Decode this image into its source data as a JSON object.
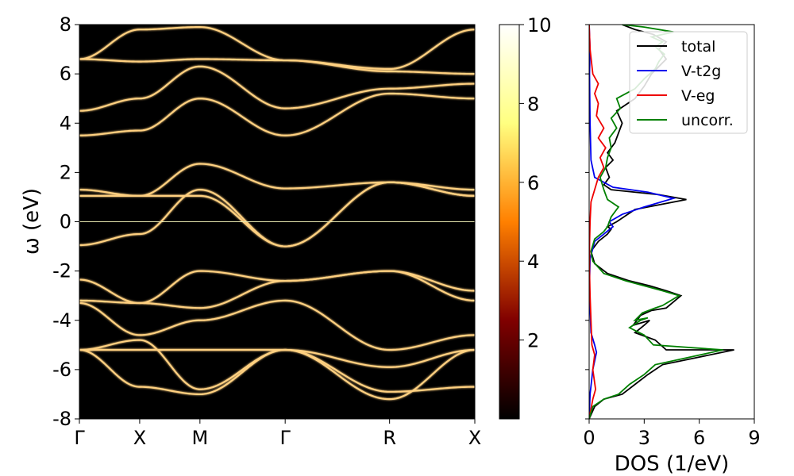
{
  "chart_data": [
    {
      "type": "heatmap",
      "ylabel": "ω (eV)",
      "ylim": [
        -8,
        8
      ],
      "yticks": [
        "-8",
        "-6",
        "-4",
        "-2",
        "0",
        "2",
        "4",
        "6",
        "8"
      ],
      "yticks_values": [
        -8,
        -6,
        -4,
        -2,
        0,
        2,
        4,
        6,
        8
      ],
      "k_path_labels": [
        "Γ",
        "X",
        "M",
        "Γ",
        "R",
        "X"
      ],
      "k_path_positions": [
        0,
        0.5,
        1.0,
        1.707,
        2.573,
        3.28
      ],
      "fermi_level": 0,
      "background_color": "#000000",
      "band_color": "#ffd080",
      "bands": [
        {
          "k": [
            0,
            0.5,
            1.0,
            1.707,
            2.573,
            3.28
          ],
          "e": [
            -0.95,
            -0.5,
            1.3,
            -1.0,
            1.6,
            1.05
          ]
        },
        {
          "k": [
            0,
            0.5,
            1.0,
            1.707,
            2.573,
            3.28
          ],
          "e": [
            1.05,
            1.05,
            1.05,
            -1.0,
            1.6,
            1.05
          ]
        },
        {
          "k": [
            0,
            0.5,
            1.0,
            1.707,
            2.573,
            3.28
          ],
          "e": [
            1.3,
            1.05,
            2.35,
            1.35,
            1.6,
            1.3
          ]
        },
        {
          "k": [
            0,
            0.5,
            1.0,
            1.707,
            2.573,
            3.28
          ],
          "e": [
            3.5,
            3.7,
            5.0,
            3.5,
            5.2,
            5.0
          ]
        },
        {
          "k": [
            0,
            0.5,
            1.0,
            1.707,
            2.573,
            3.28
          ],
          "e": [
            4.5,
            5.0,
            6.3,
            4.6,
            5.4,
            5.6
          ]
        },
        {
          "k": [
            0,
            0.5,
            1.0,
            1.707,
            2.573,
            3.28
          ],
          "e": [
            6.6,
            6.5,
            6.6,
            6.55,
            6.1,
            6.0
          ]
        },
        {
          "k": [
            0,
            0.5,
            1.0,
            1.707,
            2.573,
            3.28
          ],
          "e": [
            6.6,
            7.8,
            7.9,
            6.55,
            6.2,
            7.8
          ]
        },
        {
          "k": [
            0,
            0.5,
            1.0,
            1.707,
            2.573,
            3.28
          ],
          "e": [
            -2.35,
            -3.3,
            -2.0,
            -2.4,
            -2.0,
            -2.8
          ]
        },
        {
          "k": [
            0,
            0.5,
            1.0,
            1.707,
            2.573,
            3.28
          ],
          "e": [
            -3.2,
            -3.3,
            -3.5,
            -2.4,
            -2.0,
            -3.2
          ]
        },
        {
          "k": [
            0,
            0.5,
            1.0,
            1.707,
            2.573,
            3.28
          ],
          "e": [
            -3.3,
            -4.6,
            -4.0,
            -3.2,
            -5.2,
            -4.6
          ]
        },
        {
          "k": [
            0,
            0.5,
            1.0,
            1.707,
            2.573,
            3.28
          ],
          "e": [
            -5.2,
            -4.8,
            -6.8,
            -5.2,
            -5.9,
            -5.2
          ]
        },
        {
          "k": [
            0,
            0.5,
            1.0,
            1.707,
            2.573,
            3.28
          ],
          "e": [
            -5.2,
            -6.7,
            -7.0,
            -5.2,
            -6.9,
            -6.7
          ]
        },
        {
          "k": [
            0,
            0.5,
            1.0,
            1.707,
            2.573,
            3.28
          ],
          "e": [
            -5.2,
            -5.2,
            -5.2,
            -5.2,
            -7.2,
            -5.2
          ]
        }
      ]
    },
    {
      "type": "colorbar",
      "colormap": "afmhot",
      "range": [
        0,
        10
      ],
      "ticks": [
        "2",
        "4",
        "6",
        "8",
        "10"
      ],
      "ticks_values": [
        2,
        4,
        6,
        8,
        10
      ]
    },
    {
      "type": "line",
      "orientation": "horizontal-dos",
      "xlabel": "DOS (1/eV)",
      "xlim": [
        0,
        9
      ],
      "xticks": [
        "0",
        "3",
        "6",
        "9"
      ],
      "xticks_values": [
        0,
        3,
        6,
        9
      ],
      "ylim": [
        -8,
        8
      ],
      "legend_position": "upper-right",
      "series": [
        {
          "name": "total",
          "color": "#000000",
          "points": [
            [
              0,
              -8
            ],
            [
              0.3,
              -7.5
            ],
            [
              0.8,
              -7.2
            ],
            [
              1.8,
              -7.0
            ],
            [
              2.5,
              -6.6
            ],
            [
              3.2,
              -6.2
            ],
            [
              4.0,
              -5.8
            ],
            [
              7.9,
              -5.2
            ],
            [
              4.2,
              -5.2
            ],
            [
              3.6,
              -4.8
            ],
            [
              2.5,
              -4.5
            ],
            [
              3.0,
              -4.2
            ],
            [
              3.3,
              -4.0
            ],
            [
              2.4,
              -4.2
            ],
            [
              2.8,
              -3.8
            ],
            [
              3.4,
              -3.6
            ],
            [
              4.2,
              -3.5
            ],
            [
              5.0,
              -3.0
            ],
            [
              4.2,
              -2.8
            ],
            [
              3.3,
              -2.6
            ],
            [
              2.2,
              -2.4
            ],
            [
              1.0,
              -2.1
            ],
            [
              0.3,
              -1.7
            ],
            [
              0.1,
              -1.2
            ],
            [
              0.5,
              -0.8
            ],
            [
              1.0,
              -0.5
            ],
            [
              1.2,
              -0.3
            ],
            [
              1.0,
              -0.2
            ],
            [
              1.5,
              0.0
            ],
            [
              2.5,
              0.5
            ],
            [
              5.3,
              0.9
            ],
            [
              3.8,
              1.1
            ],
            [
              1.2,
              1.3
            ],
            [
              0.8,
              1.5
            ],
            [
              1.1,
              1.8
            ],
            [
              0.9,
              2.2
            ],
            [
              1.3,
              2.5
            ],
            [
              1.0,
              2.8
            ],
            [
              1.4,
              3.2
            ],
            [
              1.6,
              3.6
            ],
            [
              1.8,
              4.0
            ],
            [
              1.5,
              4.5
            ],
            [
              2.5,
              5.0
            ],
            [
              3.0,
              5.5
            ],
            [
              3.4,
              6.0
            ],
            [
              3.8,
              6.3
            ],
            [
              4.2,
              6.6
            ],
            [
              3.8,
              7.0
            ],
            [
              4.2,
              7.3
            ],
            [
              3.5,
              7.6
            ],
            [
              2.5,
              7.8
            ],
            [
              1.8,
              8.0
            ]
          ]
        },
        {
          "name": "V-t2g",
          "color": "#0000ee",
          "points": [
            [
              0,
              -8
            ],
            [
              0.05,
              -7.0
            ],
            [
              0.2,
              -6.0
            ],
            [
              0.4,
              -5.3
            ],
            [
              0.3,
              -5.0
            ],
            [
              0.1,
              -4.5
            ],
            [
              0.05,
              -3.5
            ],
            [
              0.02,
              -2.5
            ],
            [
              0.05,
              -1.5
            ],
            [
              0.3,
              -0.8
            ],
            [
              0.8,
              -0.5
            ],
            [
              1.3,
              -0.2
            ],
            [
              1.1,
              0.0
            ],
            [
              1.8,
              0.3
            ],
            [
              3.0,
              0.6
            ],
            [
              4.6,
              0.95
            ],
            [
              3.2,
              1.2
            ],
            [
              1.3,
              1.4
            ],
            [
              0.3,
              1.8
            ],
            [
              0.1,
              2.5
            ],
            [
              0.05,
              4
            ],
            [
              0.02,
              6
            ],
            [
              0.05,
              7
            ],
            [
              0,
              8
            ]
          ]
        },
        {
          "name": "V-eg",
          "color": "#ee0000",
          "points": [
            [
              0,
              -8
            ],
            [
              0.2,
              -7.2
            ],
            [
              0.35,
              -6.8
            ],
            [
              0.2,
              -6.0
            ],
            [
              0.3,
              -5.4
            ],
            [
              0.15,
              -5.0
            ],
            [
              0.1,
              -4.0
            ],
            [
              0.05,
              -3.0
            ],
            [
              0.02,
              -2.0
            ],
            [
              0.02,
              -1.0
            ],
            [
              0.05,
              0.0
            ],
            [
              0.1,
              0.8
            ],
            [
              0.3,
              1.3
            ],
            [
              0.5,
              1.8
            ],
            [
              0.8,
              2.2
            ],
            [
              0.6,
              2.6
            ],
            [
              0.9,
              3.0
            ],
            [
              0.5,
              3.4
            ],
            [
              0.8,
              3.8
            ],
            [
              0.4,
              4.3
            ],
            [
              0.5,
              4.8
            ],
            [
              0.3,
              5.2
            ],
            [
              0.5,
              5.6
            ],
            [
              0.2,
              6.0
            ],
            [
              0.05,
              7
            ],
            [
              0,
              8
            ]
          ]
        },
        {
          "name": "uncorr.",
          "color": "#008000",
          "points": [
            [
              0,
              -8
            ],
            [
              0.2,
              -7.5
            ],
            [
              0.8,
              -7.2
            ],
            [
              1.6,
              -7.0
            ],
            [
              2.2,
              -6.6
            ],
            [
              3.0,
              -6.2
            ],
            [
              3.6,
              -5.8
            ],
            [
              7.3,
              -5.2
            ],
            [
              3.5,
              -5.0
            ],
            [
              3.0,
              -4.6
            ],
            [
              2.2,
              -4.3
            ],
            [
              2.8,
              -4.0
            ],
            [
              3.2,
              -3.9
            ],
            [
              2.5,
              -4.0
            ],
            [
              2.9,
              -3.7
            ],
            [
              3.6,
              -3.5
            ],
            [
              4.0,
              -3.4
            ],
            [
              4.9,
              -3.0
            ],
            [
              4.0,
              -2.8
            ],
            [
              3.0,
              -2.6
            ],
            [
              2.0,
              -2.4
            ],
            [
              0.8,
              -2.1
            ],
            [
              0.2,
              -1.6
            ],
            [
              0.1,
              -1.2
            ],
            [
              0.3,
              -0.7
            ],
            [
              0.8,
              -0.4
            ],
            [
              1.0,
              -0.2
            ],
            [
              1.2,
              0.2
            ],
            [
              1.6,
              0.6
            ],
            [
              1.0,
              0.9
            ],
            [
              0.8,
              1.3
            ],
            [
              0.6,
              1.8
            ],
            [
              0.9,
              2.2
            ],
            [
              1.0,
              2.6
            ],
            [
              1.2,
              3.0
            ],
            [
              1.1,
              3.4
            ],
            [
              1.5,
              3.8
            ],
            [
              1.2,
              4.2
            ],
            [
              1.7,
              4.6
            ],
            [
              1.5,
              5.0
            ],
            [
              2.5,
              5.4
            ],
            [
              3.0,
              5.8
            ],
            [
              3.6,
              6.2
            ],
            [
              3.8,
              6.5
            ],
            [
              4.1,
              6.8
            ],
            [
              3.6,
              7.1
            ],
            [
              4.0,
              7.3
            ],
            [
              3.4,
              7.5
            ],
            [
              4.6,
              7.7
            ],
            [
              3.0,
              7.9
            ],
            [
              1.8,
              8.0
            ]
          ]
        }
      ]
    }
  ]
}
